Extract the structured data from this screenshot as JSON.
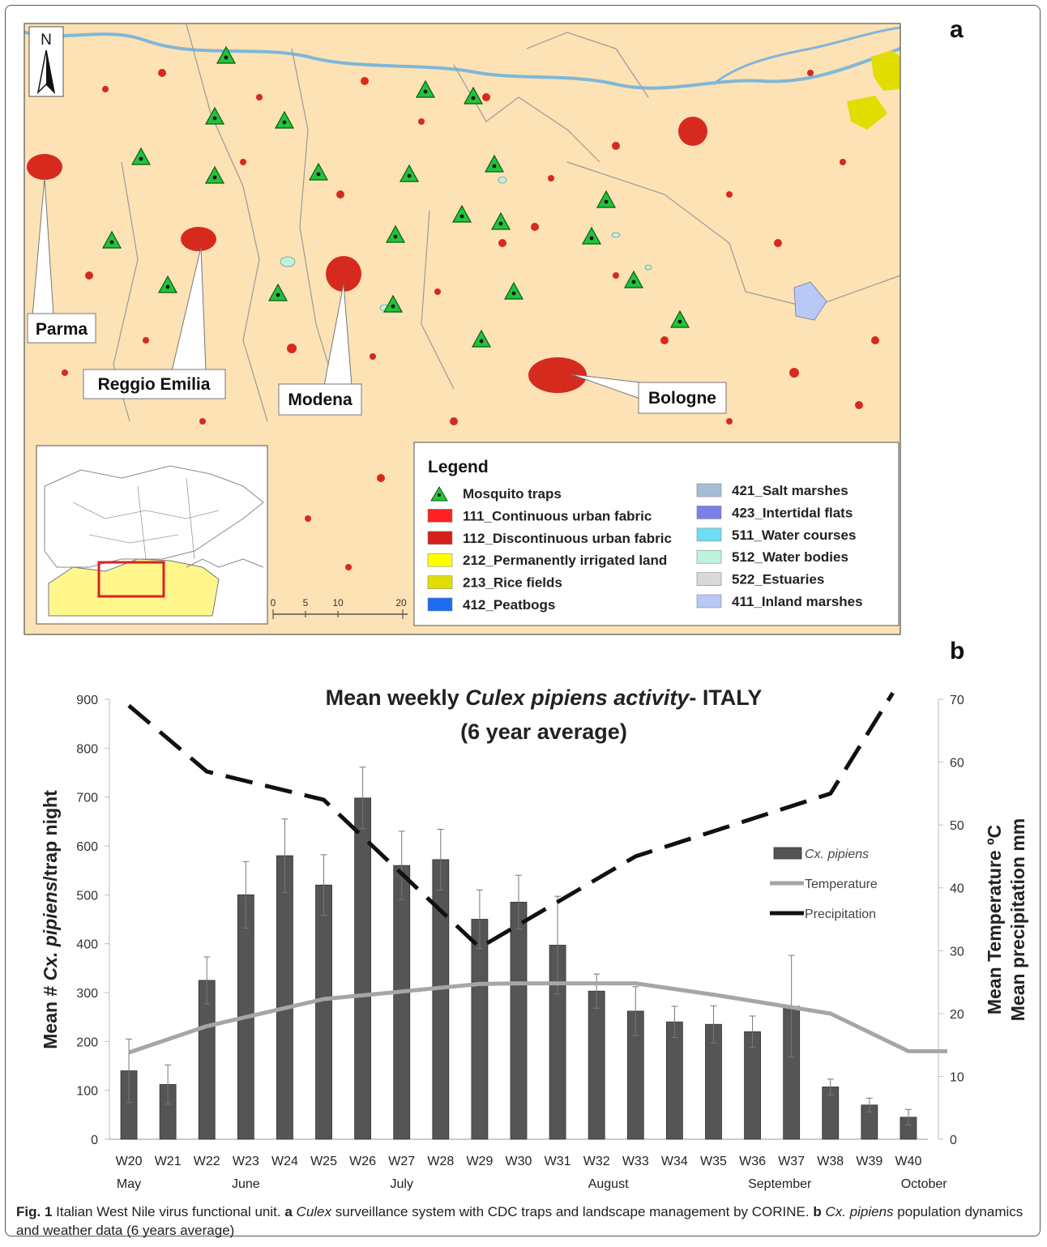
{
  "panel_a": {
    "letter": "a",
    "north": "N",
    "city_labels": [
      "Parma",
      "Reggio Emilia",
      "Modena",
      "Bologne"
    ],
    "scale": {
      "ticks": [
        "0",
        "5",
        "10",
        "20"
      ]
    },
    "legend": {
      "title": "Legend",
      "items_left": [
        {
          "label": "Mosquito traps",
          "symbol": "triangle",
          "color": "#22c33a"
        },
        {
          "label": "111_Continuous urban fabric",
          "color": "#ff2222"
        },
        {
          "label": "112_Discontinuous urban fabric",
          "color": "#d61e1e"
        },
        {
          "label": "212_Permanently irrigated land",
          "color": "#ffff00"
        },
        {
          "label": "213_Rice fields",
          "color": "#e1dd00"
        },
        {
          "label": "412_Peatbogs",
          "color": "#1b6cf0"
        }
      ],
      "items_right": [
        {
          "label": "421_Salt marshes",
          "color": "#a6bcd4"
        },
        {
          "label": "423_Intertidal flats",
          "color": "#7a80e8"
        },
        {
          "label": "511_Water courses",
          "color": "#6fdcf5"
        },
        {
          "label": "512_Water bodies",
          "color": "#bff2dc"
        },
        {
          "label": "522_Estuaries",
          "color": "#d9d9d9"
        },
        {
          "label": "411_Inland marshes",
          "color": "#b9c8f5"
        }
      ]
    },
    "colors": {
      "land": "#fde2b5",
      "urban": "#d62a1f",
      "river": "#7fb7d8",
      "trap": "#22c33a",
      "inset_region": "#fff68c",
      "inset_box": "#dd1f1f"
    }
  },
  "panel_b": {
    "letter": "b"
  },
  "chart_data": {
    "type": "bar",
    "title": "Mean weekly Culex pipiens activity- ITALY",
    "subtitle": "(6 year average)",
    "title_parts": {
      "pre": "Mean weekly ",
      "italic": "Culex pipiens activity",
      "post": "- ITALY"
    },
    "ylabel": "Mean # Cx. pipiens/trap night",
    "ylabel_parts": {
      "pre": "Mean # ",
      "italic": "Cx. pipiens",
      "post": "/trap night"
    },
    "y2label_line1": "Mean Temperature ºC",
    "y2label_line2": "Mean  precipitation mm",
    "ylim": [
      0,
      900
    ],
    "y_ticks": [
      "0",
      "100",
      "200",
      "300",
      "400",
      "500",
      "600",
      "700",
      "800",
      "900"
    ],
    "y2lim": [
      0,
      70
    ],
    "y2_ticks": [
      "0",
      "10",
      "20",
      "30",
      "40",
      "50",
      "60",
      "70"
    ],
    "categories": [
      "W20",
      "W21",
      "W22",
      "W23",
      "W24",
      "W25",
      "W26",
      "W27",
      "W28",
      "W29",
      "W30",
      "W31",
      "W32",
      "W33",
      "W34",
      "W35",
      "W36",
      "W37",
      "W38",
      "W39",
      "W40"
    ],
    "months": [
      {
        "label": "May",
        "at_week": 0
      },
      {
        "label": "June",
        "at_week": 3
      },
      {
        "label": "July",
        "at_week": 7
      },
      {
        "label": "August",
        "at_week": 12.3
      },
      {
        "label": "September",
        "at_week": 16.7
      },
      {
        "label": "October",
        "at_week": 20.4
      }
    ],
    "series": [
      {
        "name": "Cx. pipiens",
        "type": "bar",
        "axis": "left",
        "values": [
          140,
          112,
          325,
          500,
          580,
          520,
          698,
          560,
          572,
          450,
          485,
          397,
          303,
          262,
          240,
          235,
          220,
          272,
          107,
          70,
          45
        ],
        "error": [
          65,
          40,
          48,
          68,
          75,
          62,
          63,
          70,
          62,
          60,
          55,
          100,
          35,
          50,
          32,
          38,
          32,
          104,
          16,
          14,
          16
        ],
        "color": "#555555"
      },
      {
        "name": "Temperature",
        "type": "line",
        "axis": "right",
        "x": [
          0,
          2,
          5,
          7,
          9,
          10,
          13,
          15,
          17,
          18,
          19,
          20,
          21
        ],
        "values": [
          13.8,
          18.0,
          22.3,
          23.5,
          24.7,
          24.8,
          24.8,
          23.0,
          21.0,
          20.0,
          17.0,
          14.0,
          14.0
        ],
        "color": "#a6a6a6"
      },
      {
        "name": "Precipitation",
        "type": "line",
        "axis": "right",
        "dashed": true,
        "x": [
          0,
          2,
          5,
          9,
          13,
          18,
          19.6
        ],
        "values": [
          69,
          58.5,
          54,
          30.5,
          45,
          55,
          71
        ],
        "color": "#111111"
      }
    ],
    "legend_placement": "right"
  },
  "caption": {
    "fig_label": "Fig. 1",
    "text_1": " Italian West Nile virus functional unit. ",
    "a_label": "a",
    "a_italic": "Culex",
    "a_text": " surveillance system with CDC traps and landscape management by CORINE. ",
    "b_label": "b",
    "b_italic": "Cx. pipiens",
    "b_text": " population dynamics and weather data (6 years average)"
  }
}
